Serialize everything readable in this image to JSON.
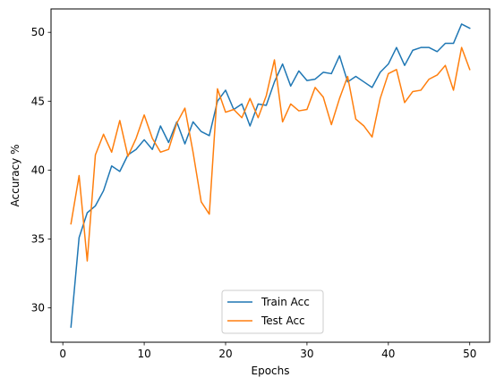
{
  "chart_data": {
    "type": "line",
    "xlabel": "Epochs",
    "ylabel": "Accuracy %",
    "xlim": [
      -1.45,
      52.45
    ],
    "ylim": [
      27.5,
      51.7
    ],
    "xticks": [
      0,
      10,
      20,
      30,
      40,
      50
    ],
    "yticks": [
      30,
      35,
      40,
      45,
      50
    ],
    "legend_position": "bottom-center",
    "grid": false,
    "x": [
      1,
      2,
      3,
      4,
      5,
      6,
      7,
      8,
      9,
      10,
      11,
      12,
      13,
      14,
      15,
      16,
      17,
      18,
      19,
      20,
      21,
      22,
      23,
      24,
      25,
      26,
      27,
      28,
      29,
      30,
      31,
      32,
      33,
      34,
      35,
      36,
      37,
      38,
      39,
      40,
      41,
      42,
      43,
      44,
      45,
      46,
      47,
      48,
      49,
      50
    ],
    "series": [
      {
        "name": "Train Acc",
        "color": "#1f77b4",
        "values": [
          28.6,
          35.1,
          36.9,
          37.4,
          38.5,
          40.3,
          39.9,
          41.1,
          41.5,
          42.2,
          41.5,
          43.2,
          42.0,
          43.5,
          41.9,
          43.5,
          42.8,
          42.5,
          45.0,
          45.8,
          44.4,
          44.8,
          43.2,
          44.8,
          44.7,
          46.4,
          47.7,
          46.1,
          47.2,
          46.5,
          46.6,
          47.1,
          47.0,
          48.3,
          46.4,
          46.8,
          46.4,
          46.0,
          47.1,
          47.7,
          48.9,
          47.6,
          48.7,
          48.9,
          48.9,
          48.6,
          49.2,
          49.2,
          50.6,
          50.3
        ]
      },
      {
        "name": "Test Acc",
        "color": "#ff7f0e",
        "values": [
          36.1,
          39.6,
          33.4,
          41.1,
          42.6,
          41.3,
          43.6,
          41.0,
          42.3,
          44.0,
          42.3,
          41.3,
          41.5,
          43.4,
          44.5,
          41.3,
          37.7,
          36.8,
          45.9,
          44.2,
          44.4,
          43.8,
          45.2,
          43.8,
          45.4,
          48.0,
          43.5,
          44.8,
          44.3,
          44.4,
          46.0,
          45.3,
          43.3,
          45.2,
          46.8,
          43.7,
          43.2,
          42.4,
          45.2,
          47.0,
          47.3,
          44.9,
          45.7,
          45.8,
          46.6,
          46.9,
          47.6,
          45.8,
          48.9,
          47.3
        ]
      }
    ]
  }
}
